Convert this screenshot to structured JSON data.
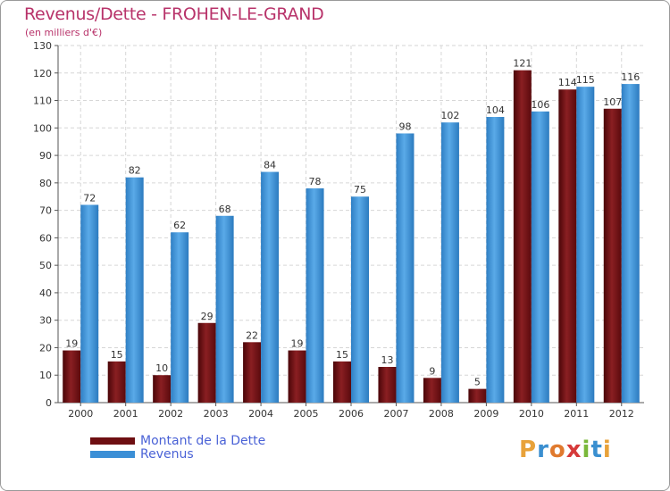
{
  "colors": {
    "dette": "#6e0f12",
    "revenus": "#3b8fd6",
    "title": "#b8336a",
    "legend_text": "#4a62d6"
  },
  "logo": {
    "text": "Proxiti",
    "letters": [
      {
        "ch": "P",
        "color": "#e8a23a"
      },
      {
        "ch": "r",
        "color": "#3a8fd0"
      },
      {
        "ch": "o",
        "color": "#e07a2e"
      },
      {
        "ch": "x",
        "color": "#d63a3a"
      },
      {
        "ch": "i",
        "color": "#7ab83a"
      },
      {
        "ch": "t",
        "color": "#3a8fd0"
      },
      {
        "ch": "i",
        "color": "#e8a23a"
      }
    ]
  },
  "chart_data": {
    "type": "bar",
    "title": "Revenus/Dette - FROHEN-LE-GRAND",
    "subtitle": "(en milliers d'€)",
    "xlabel": "",
    "ylabel": "",
    "ylim": [
      0,
      130
    ],
    "yticks": [
      0,
      10,
      20,
      30,
      40,
      50,
      60,
      70,
      80,
      90,
      100,
      110,
      120,
      130
    ],
    "grid": true,
    "legend_position": "bottom-left",
    "categories": [
      "2000",
      "2001",
      "2002",
      "2003",
      "2004",
      "2005",
      "2006",
      "2007",
      "2008",
      "2009",
      "2010",
      "2011",
      "2012"
    ],
    "series": [
      {
        "name": "Montant de la Dette",
        "color": "#6e0f12",
        "values": [
          19,
          15,
          10,
          29,
          22,
          19,
          15,
          13,
          9,
          5,
          121,
          114,
          107
        ]
      },
      {
        "name": "Revenus",
        "color": "#3b8fd6",
        "values": [
          72,
          82,
          62,
          68,
          84,
          78,
          75,
          98,
          102,
          104,
          106,
          115,
          116
        ]
      }
    ]
  }
}
